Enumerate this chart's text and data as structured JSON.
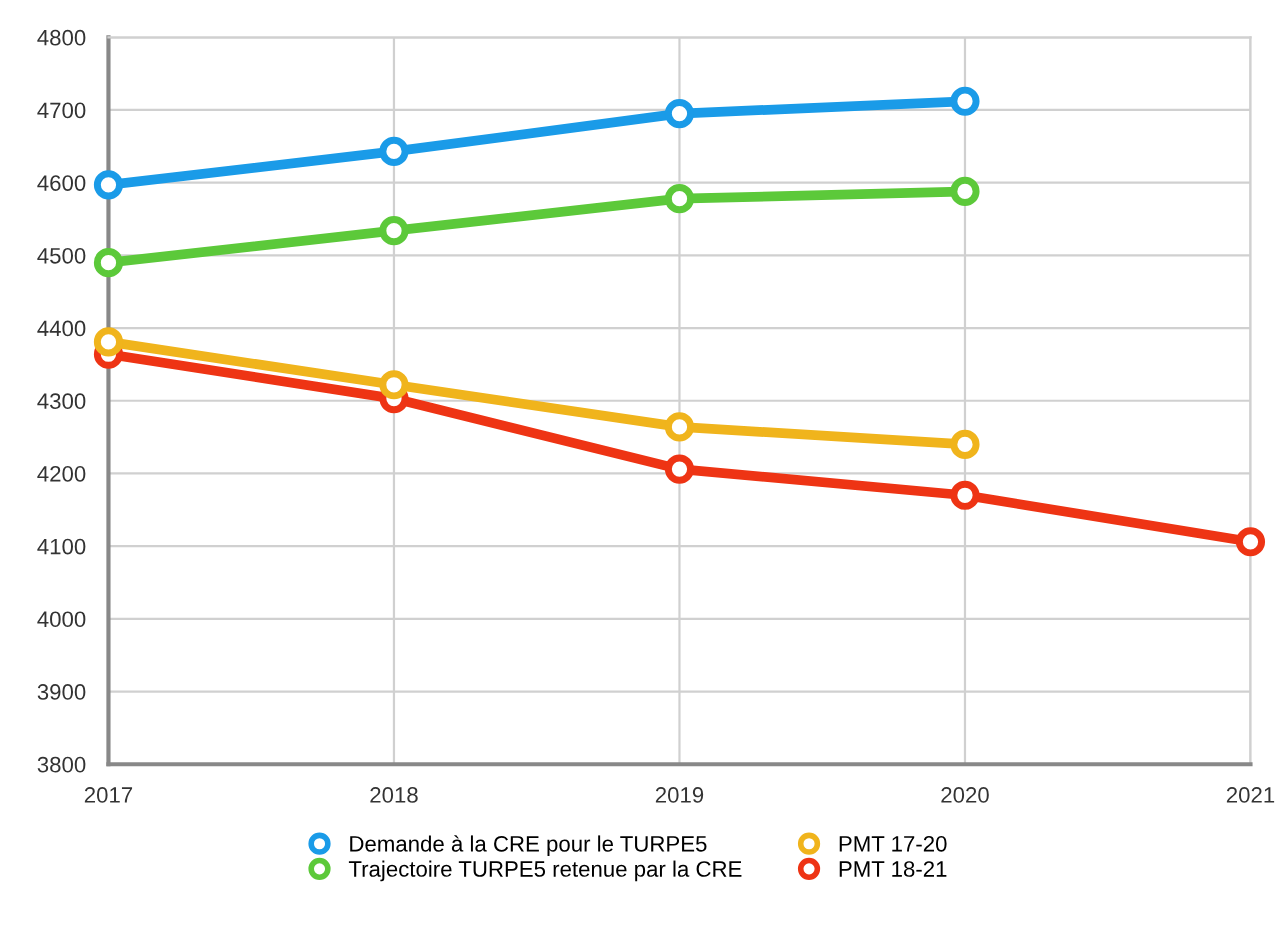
{
  "chart_data": {
    "type": "line",
    "x": [
      2017,
      2018,
      2019,
      2020,
      2021
    ],
    "series": [
      {
        "name": "Demande à la CRE pour le TURPE5",
        "color": "#1a9be8",
        "values": [
          4597,
          4643,
          4695,
          4712,
          null
        ]
      },
      {
        "name": "Trajectoire TURPE5 retenue par la CRE",
        "color": "#5cc93a",
        "values": [
          4490,
          4534,
          4578,
          4588,
          null
        ]
      },
      {
        "name": "PMT 17-20",
        "color": "#f0b41c",
        "values": [
          4381,
          4322,
          4264,
          4240,
          null
        ]
      },
      {
        "name": "PMT 18-21",
        "color": "#ee3414",
        "values": [
          4364,
          4303,
          4206,
          4170,
          4106
        ]
      }
    ],
    "xlim": [
      2017,
      2021
    ],
    "xticks": [
      2017,
      2018,
      2019,
      2020,
      2021
    ],
    "ylim": [
      3800,
      4800
    ],
    "yticks": [
      3800,
      3900,
      4000,
      4100,
      4200,
      4300,
      4400,
      4500,
      4600,
      4700,
      4800
    ],
    "grid": true,
    "legend": "bottom",
    "marker": "circle",
    "line_style": "solid"
  }
}
